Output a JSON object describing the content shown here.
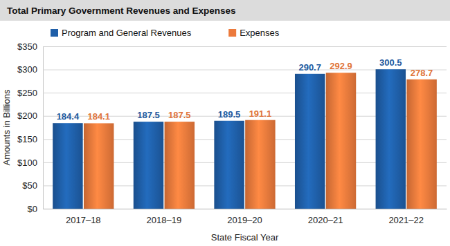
{
  "chart_data": {
    "type": "bar",
    "title": "Total Primary Government Revenues and Expenses",
    "x_label": "State Fiscal Year",
    "y_label": "Amounts in Billions",
    "categories": [
      "2017–18",
      "2018–19",
      "2019–20",
      "2020–21",
      "2021–22"
    ],
    "series": [
      {
        "name": "Program and General Revenues",
        "color": "#1f5fa8",
        "values": [
          184.4,
          187.5,
          189.5,
          290.7,
          300.5
        ]
      },
      {
        "name": "Expenses",
        "color": "#ec7a3c",
        "values": [
          184.1,
          187.5,
          191.1,
          292.9,
          278.7
        ]
      }
    ],
    "ylim": [
      0,
      350
    ],
    "yticks": [
      {
        "value": 0,
        "label": "$0"
      },
      {
        "value": 50,
        "label": "$50"
      },
      {
        "value": 100,
        "label": "$100"
      },
      {
        "value": 150,
        "label": "$150"
      },
      {
        "value": 200,
        "label": "$200"
      },
      {
        "value": 250,
        "label": "$250"
      },
      {
        "value": 300,
        "label": "$300"
      },
      {
        "value": 350,
        "label": "$350"
      }
    ],
    "grid": true,
    "legend": "top",
    "data_labels": true
  }
}
